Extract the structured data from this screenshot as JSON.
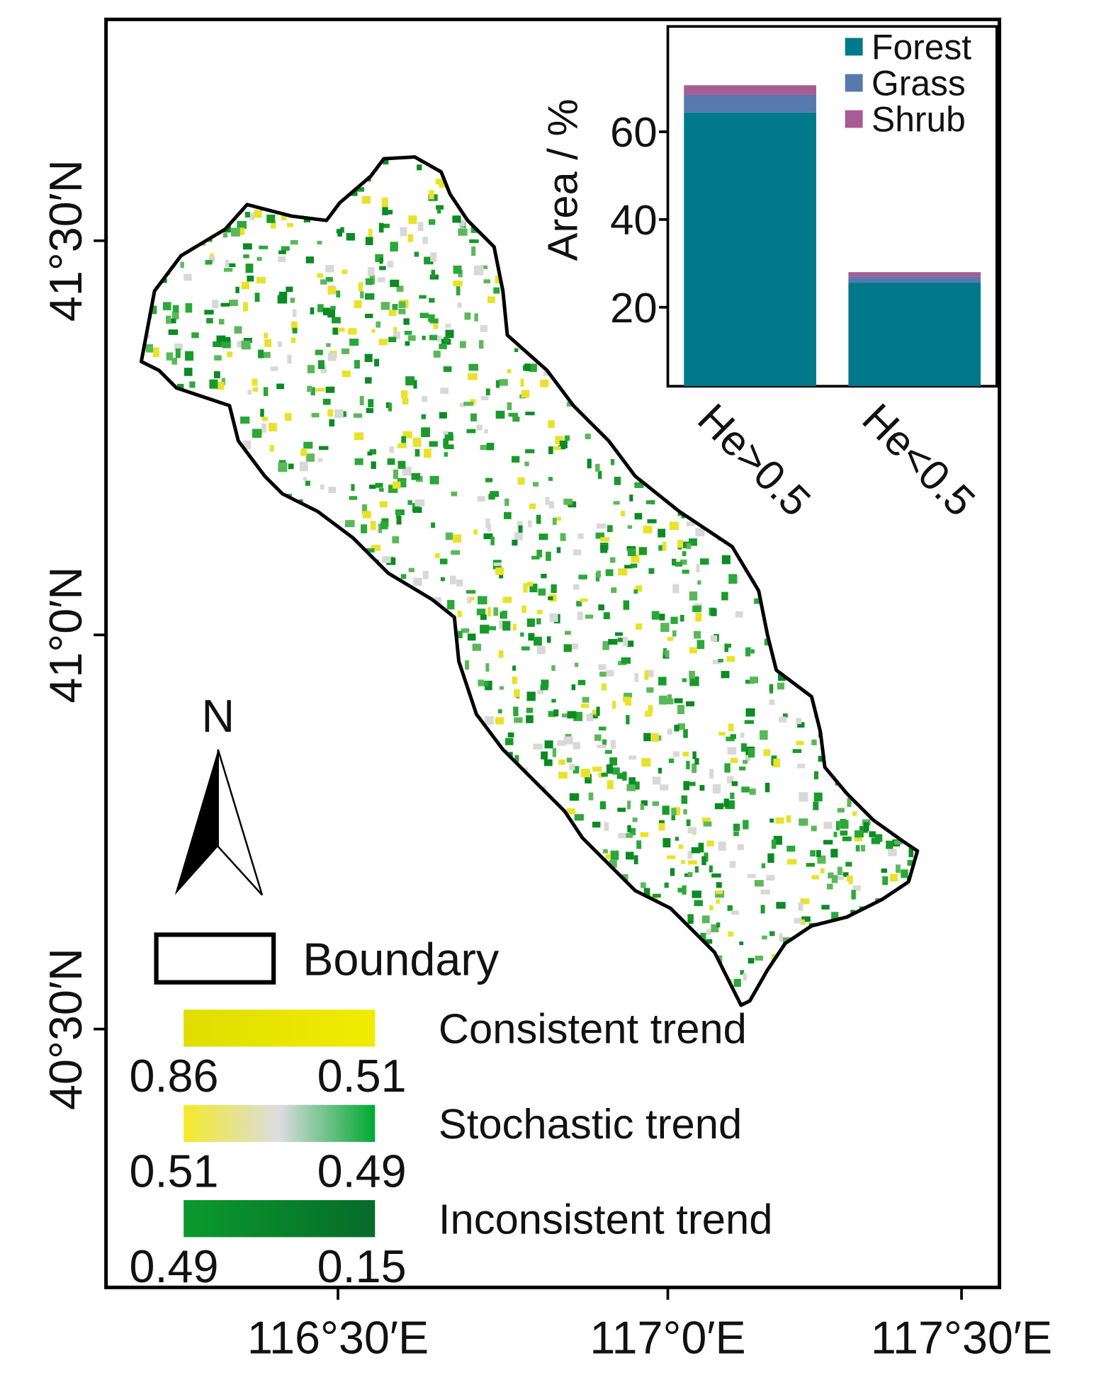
{
  "map": {
    "lat_ticks": [
      "41°30′N",
      "41°0′N",
      "40°30′N"
    ],
    "lon_ticks": [
      "116°30′E",
      "117°0′E",
      "117°30′E"
    ],
    "north_label": "N",
    "boundary_label": "Boundary",
    "legend": [
      {
        "name": "Consistent trend",
        "low": "0.86",
        "high": "0.51",
        "colors": [
          "#e0dd00",
          "#f0ec00"
        ]
      },
      {
        "name": "Stochastic trend",
        "low": "0.51",
        "high": "0.49",
        "colors": [
          "#f3ea2a",
          "#dcdce0",
          "#00a832"
        ]
      },
      {
        "name": "Inconsistent trend",
        "low": "0.49",
        "high": "0.15",
        "colors": [
          "#0a9a2c",
          "#066b2a"
        ]
      }
    ]
  },
  "chart_data": {
    "type": "stacked-bar",
    "ylabel": "Area / %",
    "categories": [
      "He>0.5",
      "He<0.5"
    ],
    "series": [
      {
        "name": "Forest",
        "color": "#00798a",
        "values": [
          62.4,
          23.6
        ]
      },
      {
        "name": "Grass",
        "color": "#5879ae",
        "values": [
          4,
          1.4
        ]
      },
      {
        "name": "Shrub",
        "color": "#a85c96",
        "values": [
          2.2,
          1
        ]
      }
    ],
    "ylim": [
      2,
      84
    ],
    "yticks": [
      20,
      40,
      60
    ]
  }
}
